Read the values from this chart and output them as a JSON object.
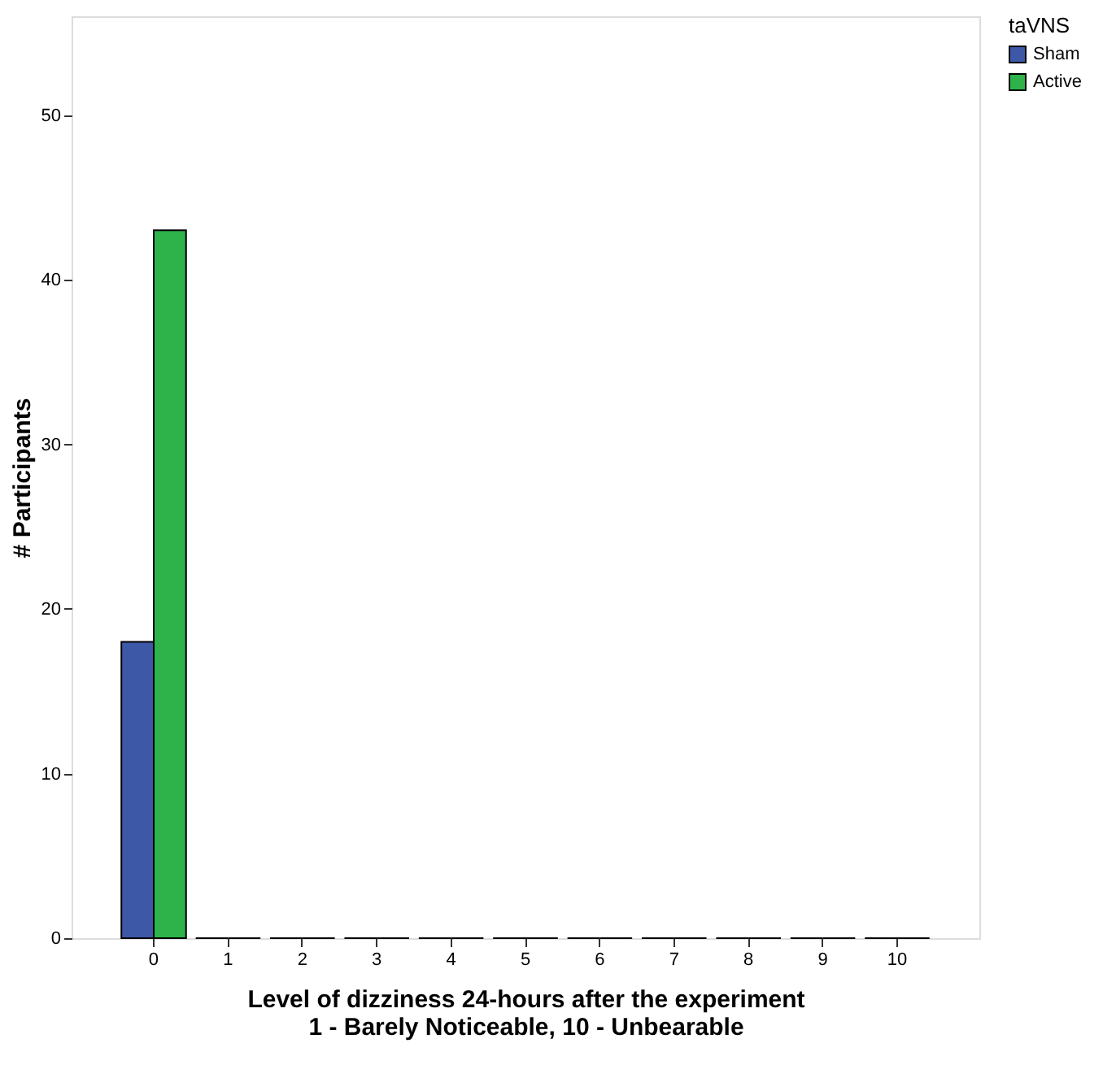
{
  "chart_data": {
    "type": "bar",
    "xlabel": "Level of dizziness 24-hours after the experiment\n1 - Barely Noticeable, 10 - Unbearable",
    "ylabel": "# Participants",
    "legend_title": "taVNS",
    "categories": [
      "0",
      "1",
      "2",
      "3",
      "4",
      "5",
      "6",
      "7",
      "8",
      "9",
      "10"
    ],
    "series": [
      {
        "name": "Sham",
        "color": "#3e58a8",
        "values": [
          18,
          0,
          0,
          0,
          0,
          0,
          0,
          0,
          0,
          0,
          0
        ]
      },
      {
        "name": "Active",
        "color": "#2db34a",
        "values": [
          43,
          0,
          0,
          0,
          0,
          0,
          0,
          0,
          0,
          0,
          0
        ]
      }
    ],
    "ylim": [
      0,
      56
    ],
    "yticks": [
      0,
      10,
      20,
      30,
      40,
      50
    ],
    "grid": false,
    "legend": "top right"
  }
}
